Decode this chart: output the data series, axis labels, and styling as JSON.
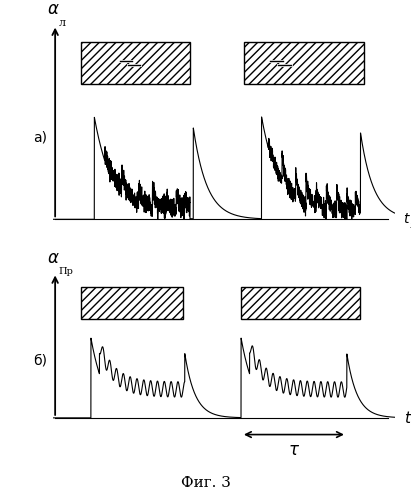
{
  "fig_title": "Фиг. 3",
  "panel_a_ylabel": "α",
  "panel_a_ylabel_sub": "л",
  "panel_a_xlabel": "t",
  "panel_a_xlabel_sub": "л",
  "panel_b_ylabel": "α",
  "panel_b_ylabel_sub": "Пр",
  "panel_b_xlabel": "t",
  "label_a": "а)",
  "label_b": "б)",
  "tau_label": "τ",
  "bg_color": "#ffffff",
  "line_color": "#000000"
}
